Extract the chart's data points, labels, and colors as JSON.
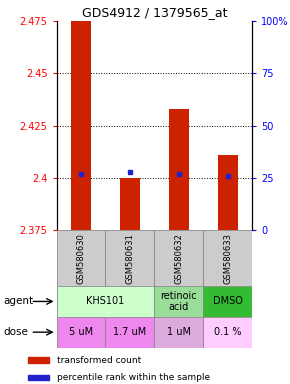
{
  "title": "GDS4912 / 1379565_at",
  "samples": [
    "GSM580630",
    "GSM580631",
    "GSM580632",
    "GSM580633"
  ],
  "bar_bottoms": [
    2.375,
    2.375,
    2.375,
    2.375
  ],
  "bar_tops": [
    2.475,
    2.4,
    2.433,
    2.411
  ],
  "blue_y": [
    2.402,
    2.403,
    2.402,
    2.401
  ],
  "y_min": 2.375,
  "y_max": 2.475,
  "y_ticks": [
    2.375,
    2.4,
    2.425,
    2.45,
    2.475
  ],
  "y_right_ticks": [
    0,
    25,
    50,
    75,
    100
  ],
  "agent_info": [
    {
      "start": 0,
      "end": 1,
      "label": "KHS101",
      "color": "#ccffcc"
    },
    {
      "start": 2,
      "end": 2,
      "label": "retinoic\nacid",
      "color": "#99dd99"
    },
    {
      "start": 3,
      "end": 3,
      "label": "DMSO",
      "color": "#33bb33"
    }
  ],
  "dose_labels": [
    "5 uM",
    "1.7 uM",
    "1 uM",
    "0.1 %"
  ],
  "dose_colors": [
    "#ee88ee",
    "#ee88ee",
    "#ddaadd",
    "#ffccff"
  ],
  "bar_color": "#cc2200",
  "blue_color": "#2222cc",
  "title_fontsize": 9,
  "tick_fontsize": 7,
  "sample_fontsize": 6,
  "cell_fontsize": 7
}
